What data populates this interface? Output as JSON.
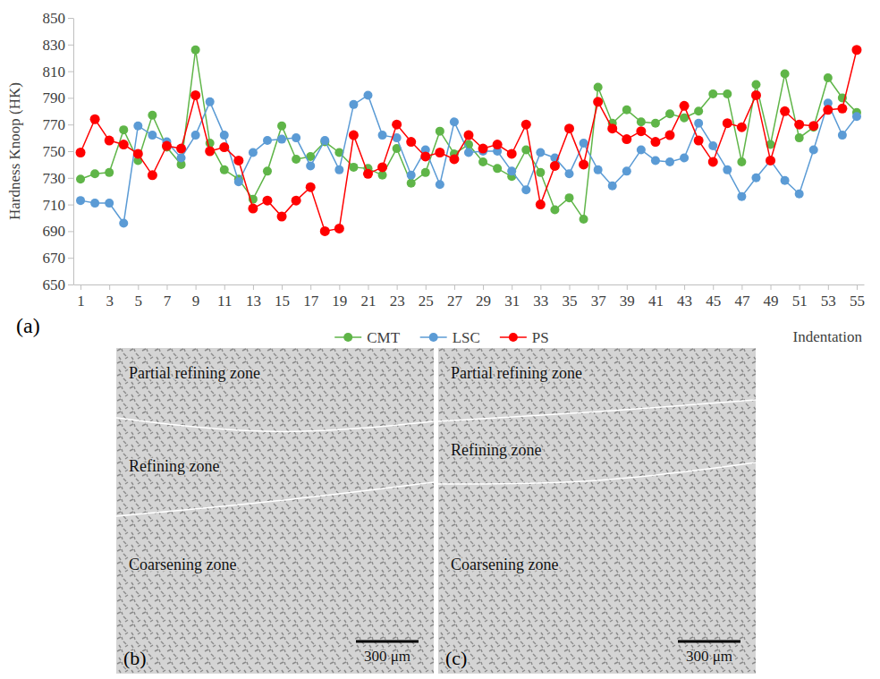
{
  "chart_data": {
    "type": "line",
    "y_label": "Hardness Knoop (HK)",
    "x_label": "Indentation",
    "annotations": [
      "(a)"
    ],
    "x": [
      1,
      2,
      3,
      4,
      5,
      6,
      7,
      8,
      9,
      10,
      11,
      12,
      13,
      14,
      15,
      16,
      17,
      18,
      19,
      20,
      21,
      22,
      23,
      24,
      25,
      26,
      27,
      28,
      29,
      30,
      31,
      32,
      33,
      34,
      35,
      36,
      37,
      38,
      39,
      40,
      41,
      42,
      43,
      44,
      45,
      46,
      47,
      48,
      49,
      50,
      51,
      52,
      53,
      54,
      55
    ],
    "xlim": [
      0.5,
      55.5
    ],
    "xticks": [
      1,
      3,
      5,
      7,
      9,
      11,
      13,
      15,
      17,
      19,
      21,
      23,
      25,
      27,
      29,
      31,
      33,
      35,
      37,
      39,
      41,
      43,
      45,
      47,
      49,
      51,
      53,
      55
    ],
    "ylim": [
      650,
      850
    ],
    "yticks": [
      650,
      670,
      690,
      710,
      730,
      750,
      770,
      790,
      810,
      830,
      850
    ],
    "grid": false,
    "legend": "bottom",
    "marker": "circle",
    "line_style": "solid",
    "series": [
      {
        "name": "CMT",
        "color": "#5fb548",
        "values": [
          729,
          733,
          734,
          766,
          743,
          777,
          753,
          740,
          826,
          756,
          736,
          729,
          714,
          735,
          769,
          744,
          746,
          757,
          749,
          738,
          737,
          732,
          752,
          726,
          734,
          765,
          748,
          755,
          742,
          737,
          731,
          751,
          734,
          706,
          715,
          699,
          798,
          771,
          781,
          772,
          771,
          778,
          775,
          780,
          793,
          793,
          742,
          800,
          755,
          808,
          760,
          768,
          805,
          790,
          779
        ]
      },
      {
        "name": "LSC",
        "color": "#5b9bd5",
        "values": [
          713,
          711,
          711,
          696,
          769,
          762,
          757,
          745,
          762,
          787,
          762,
          727,
          749,
          758,
          759,
          760,
          739,
          758,
          736,
          785,
          792,
          762,
          760,
          732,
          751,
          725,
          772,
          749,
          750,
          750,
          735,
          721,
          749,
          745,
          733,
          756,
          736,
          724,
          735,
          751,
          743,
          742,
          745,
          771,
          754,
          736,
          716,
          730,
          743,
          728,
          718,
          751,
          786,
          762,
          776
        ]
      },
      {
        "name": "PS",
        "color": "#ff0000",
        "values": [
          749,
          774,
          758,
          755,
          748,
          732,
          754,
          752,
          792,
          750,
          753,
          743,
          707,
          713,
          701,
          713,
          723,
          690,
          692,
          762,
          733,
          738,
          770,
          757,
          746,
          749,
          744,
          762,
          752,
          755,
          748,
          770,
          710,
          739,
          767,
          740,
          787,
          767,
          759,
          765,
          757,
          762,
          784,
          758,
          742,
          771,
          768,
          792,
          743,
          780,
          770,
          769,
          781,
          782,
          826
        ]
      }
    ]
  },
  "micrographs": [
    {
      "label": "(b)",
      "zones": [
        "Partial refining zone",
        "Refining zone",
        "Coarsening zone"
      ],
      "scale_bar": "300 μm"
    },
    {
      "label": "(c)",
      "zones": [
        "Partial refining zone",
        "Refining zone",
        "Coarsening zone"
      ],
      "scale_bar": "300 μm"
    }
  ]
}
